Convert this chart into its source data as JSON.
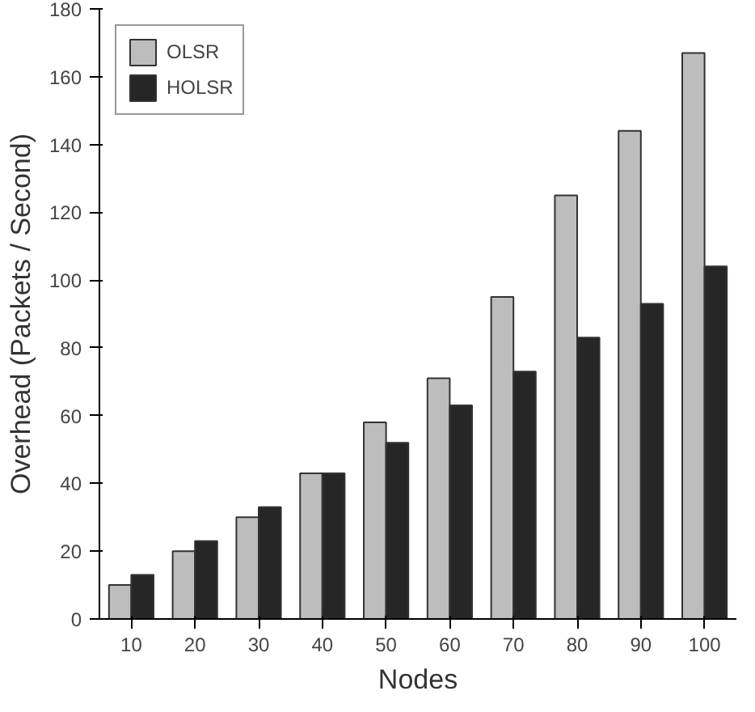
{
  "chart_data": {
    "type": "bar",
    "xlabel": "Nodes",
    "ylabel": "Overhead (Packets / Second)",
    "categories": [
      "10",
      "20",
      "30",
      "40",
      "50",
      "60",
      "70",
      "80",
      "90",
      "100"
    ],
    "series": [
      {
        "name": "OLSR",
        "color": "#bdbdbd",
        "values": [
          10,
          20,
          30,
          43,
          58,
          71,
          95,
          125,
          144,
          167
        ]
      },
      {
        "name": "HOLSR",
        "color": "#262626",
        "values": [
          13,
          23,
          33,
          43,
          52,
          63,
          73,
          83,
          93,
          104
        ]
      }
    ],
    "ylim": [
      0,
      180
    ],
    "yticks": [
      0,
      20,
      40,
      60,
      80,
      100,
      120,
      140,
      160,
      180
    ],
    "grid": false,
    "legend": "top left"
  }
}
